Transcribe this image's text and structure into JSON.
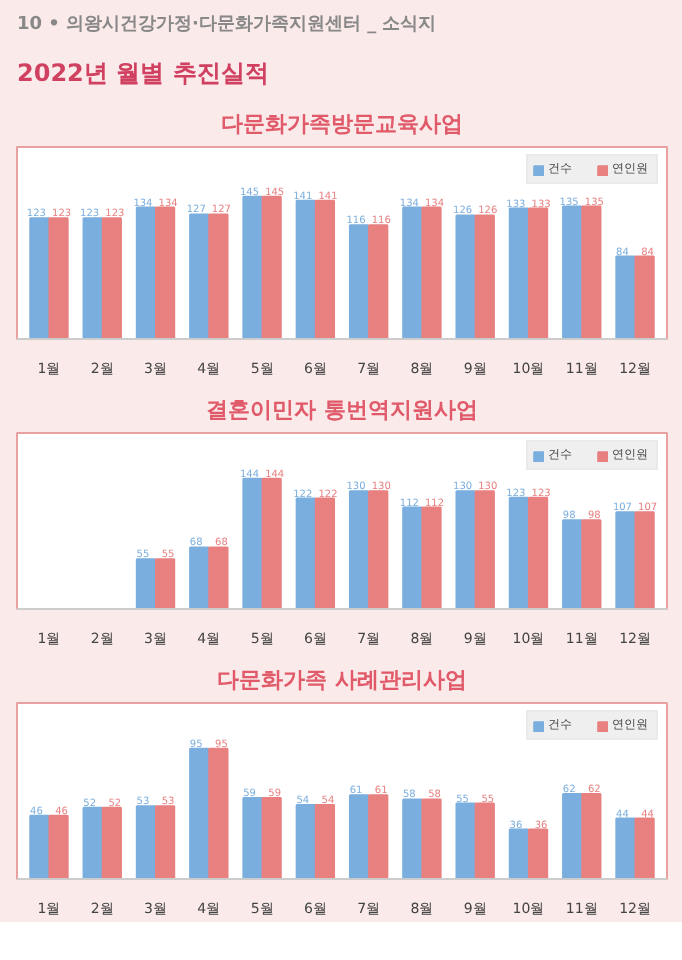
{
  "chart_data": [
    {
      "type": "bar",
      "title": "다문화가족방문교육사업",
      "annotations": [
        "10 • 의왕시건강가정·다문화가족지원센터 _ 소식지",
        "2022년 월별 추진실적"
      ],
      "categories": [
        "1월",
        "2월",
        "3월",
        "4월",
        "5월",
        "6월",
        "7월",
        "8월",
        "9월",
        "10월",
        "11월",
        "12월"
      ],
      "series": [
        {
          "name": "건수",
          "color": "#7aaede",
          "values": [
            123,
            123,
            134,
            127,
            145,
            141,
            116,
            134,
            126,
            133,
            135,
            84
          ]
        },
        {
          "name": "연인원",
          "color": "#e88080",
          "values": [
            123,
            123,
            134,
            127,
            145,
            141,
            116,
            134,
            126,
            133,
            135,
            84
          ]
        }
      ],
      "data_labels": true,
      "legend": "top right",
      "grid": false
    },
    {
      "type": "bar",
      "title": "결혼이민자 통번역지원사업",
      "categories": [
        "1월",
        "2월",
        "3월",
        "4월",
        "5월",
        "6월",
        "7월",
        "8월",
        "9월",
        "10월",
        "11월",
        "12월"
      ],
      "series": [
        {
          "name": "건수",
          "color": "#7aaede",
          "values": [
            null,
            null,
            55,
            68,
            144,
            122,
            130,
            112,
            130,
            123,
            98,
            107
          ]
        },
        {
          "name": "연인원",
          "color": "#e88080",
          "values": [
            null,
            null,
            55,
            68,
            144,
            122,
            130,
            112,
            130,
            123,
            98,
            107
          ]
        }
      ],
      "data_labels": true,
      "legend": "top right",
      "grid": false
    },
    {
      "type": "bar",
      "title": "다문화가족 사례관리사업",
      "categories": [
        "1월",
        "2월",
        "3월",
        "4월",
        "5월",
        "6월",
        "7월",
        "8월",
        "9월",
        "10월",
        "11월",
        "12월"
      ],
      "series": [
        {
          "name": "건수",
          "color": "#7aaede",
          "values": [
            46,
            52,
            53,
            95,
            59,
            54,
            61,
            58,
            55,
            36,
            62,
            44
          ]
        },
        {
          "name": "연인원",
          "color": "#e88080",
          "values": [
            46,
            52,
            53,
            95,
            59,
            54,
            61,
            58,
            55,
            36,
            62,
            44
          ]
        }
      ],
      "data_labels": true,
      "legend": "top right",
      "grid": false
    }
  ]
}
